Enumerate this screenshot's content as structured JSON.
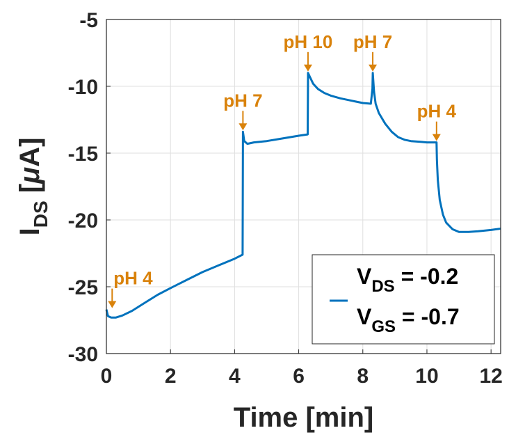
{
  "chart_data": {
    "type": "line",
    "xlabel": "Time [min]",
    "ylabel": {
      "main": "I",
      "sub": "DS",
      "unit_open": " [",
      "unit_mu": "μ",
      "unit_close": "A]"
    },
    "xlim": [
      0,
      12.3
    ],
    "ylim": [
      -30,
      -5
    ],
    "xticks": [
      0,
      2,
      4,
      6,
      8,
      10,
      12
    ],
    "xtick_labels": [
      "0",
      "2",
      "4",
      "6",
      "8",
      "10",
      "12"
    ],
    "yticks": [
      -30,
      -25,
      -20,
      -15,
      -10,
      -5
    ],
    "ytick_labels": [
      "-30",
      "-25",
      "-20",
      "-15",
      "-10",
      "-5"
    ],
    "grid": true,
    "legend_position": "bottom-right",
    "series": [
      {
        "legend_lines": [
          {
            "main": "V",
            "sub": "DS",
            "rest": " = -0.2"
          },
          {
            "main": "V",
            "sub": "GS",
            "rest": " = -0.7"
          }
        ],
        "color": "#0072BD",
        "x": [
          0,
          0.05,
          0.15,
          0.3,
          0.5,
          0.8,
          1.2,
          1.6,
          2.0,
          2.5,
          3.0,
          3.5,
          4.0,
          4.25,
          4.26,
          4.3,
          4.4,
          4.6,
          5.0,
          5.5,
          6.0,
          6.28,
          6.29,
          6.35,
          6.45,
          6.6,
          6.8,
          7.0,
          7.3,
          7.6,
          8.0,
          8.25,
          8.3,
          8.31,
          8.35,
          8.4,
          8.5,
          8.7,
          8.9,
          9.1,
          9.3,
          9.5,
          9.8,
          10.0,
          10.3,
          10.31,
          10.34,
          10.4,
          10.5,
          10.6,
          10.8,
          11.0,
          11.3,
          11.6,
          12.0,
          12.3
        ],
        "y": [
          -26.7,
          -27.2,
          -27.3,
          -27.3,
          -27.15,
          -26.8,
          -26.2,
          -25.6,
          -25.1,
          -24.5,
          -23.9,
          -23.4,
          -22.9,
          -22.6,
          -13.4,
          -14.1,
          -14.3,
          -14.2,
          -14.1,
          -13.9,
          -13.7,
          -13.6,
          -9.0,
          -9.3,
          -9.8,
          -10.2,
          -10.5,
          -10.7,
          -10.9,
          -11.05,
          -11.25,
          -11.3,
          -10.2,
          -9.0,
          -10.4,
          -11.3,
          -12.0,
          -12.8,
          -13.4,
          -13.8,
          -14.0,
          -14.1,
          -14.15,
          -14.2,
          -14.2,
          -15.5,
          -17.0,
          -18.5,
          -19.6,
          -20.2,
          -20.7,
          -20.9,
          -20.9,
          -20.85,
          -20.75,
          -20.65
        ]
      }
    ],
    "annotations": [
      {
        "text": "pH 4",
        "x": 0.05,
        "y": -26.7
      },
      {
        "text": "pH 7",
        "x": 4.26,
        "y": -13.4
      },
      {
        "text": "pH 10",
        "x": 6.29,
        "y": -9.0
      },
      {
        "text": "pH 7",
        "x": 8.31,
        "y": -9.0
      },
      {
        "text": "pH 4",
        "x": 10.3,
        "y": -14.2
      }
    ],
    "annotation_color": "#D9820B",
    "axis_color": "#262626",
    "grid_color": "#DFDFDF"
  }
}
